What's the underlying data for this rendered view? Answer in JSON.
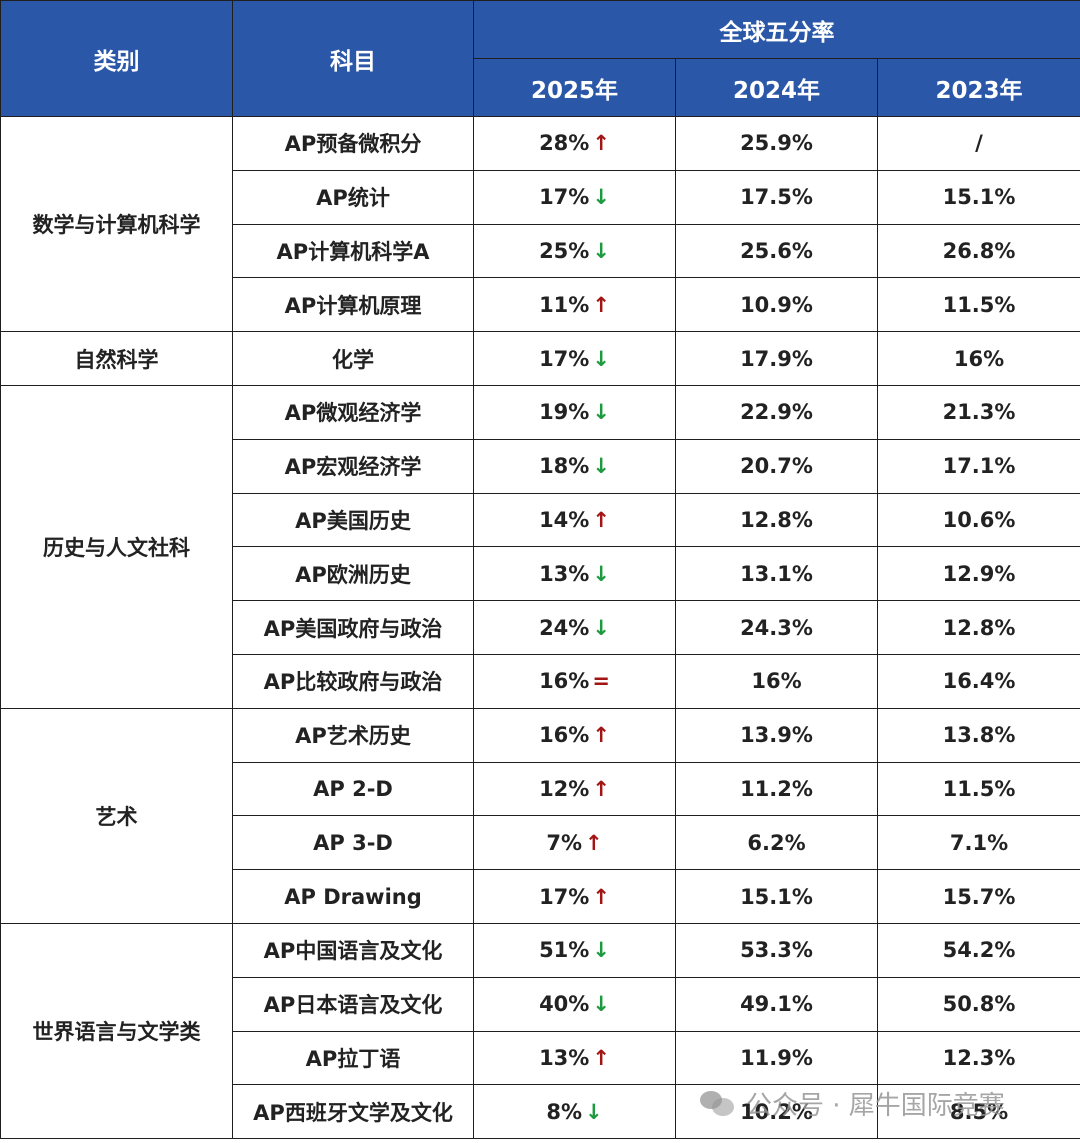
{
  "header": {
    "category": "类别",
    "subject": "科目",
    "group": "全球五分率",
    "years": [
      "2025年",
      "2024年",
      "2023年"
    ]
  },
  "categories": [
    {
      "name": "数学与计算机科学",
      "rows": 4
    },
    {
      "name": "自然科学",
      "rows": 1
    },
    {
      "name": "历史与人文社科",
      "rows": 6
    },
    {
      "name": "艺术",
      "rows": 4
    },
    {
      "name": "世界语言与文学类",
      "rows": 4
    }
  ],
  "rows": [
    {
      "subject": "AP预备微积分",
      "y2025": "28%",
      "trend": "up",
      "y2024": "25.9%",
      "y2023": "/"
    },
    {
      "subject": "AP统计",
      "y2025": "17%",
      "trend": "down",
      "y2024": "17.5%",
      "y2023": "15.1%"
    },
    {
      "subject": "AP计算机科学A",
      "y2025": "25%",
      "trend": "down",
      "y2024": "25.6%",
      "y2023": "26.8%"
    },
    {
      "subject": "AP计算机原理",
      "y2025": "11%",
      "trend": "up",
      "y2024": "10.9%",
      "y2023": "11.5%"
    },
    {
      "subject": "化学",
      "y2025": "17%",
      "trend": "down",
      "y2024": "17.9%",
      "y2023": "16%"
    },
    {
      "subject": "AP微观经济学",
      "y2025": "19%",
      "trend": "down",
      "y2024": "22.9%",
      "y2023": "21.3%"
    },
    {
      "subject": "AP宏观经济学",
      "y2025": "18%",
      "trend": "down",
      "y2024": "20.7%",
      "y2023": "17.1%"
    },
    {
      "subject": "AP美国历史",
      "y2025": "14%",
      "trend": "up",
      "y2024": "12.8%",
      "y2023": "10.6%"
    },
    {
      "subject": "AP欧洲历史",
      "y2025": "13%",
      "trend": "down",
      "y2024": "13.1%",
      "y2023": "12.9%"
    },
    {
      "subject": "AP美国政府与政治",
      "y2025": "24%",
      "trend": "down",
      "y2024": "24.3%",
      "y2023": "12.8%"
    },
    {
      "subject": "AP比较政府与政治",
      "y2025": "16%",
      "trend": "eq",
      "y2024": "16%",
      "y2023": "16.4%"
    },
    {
      "subject": "AP艺术历史",
      "y2025": "16%",
      "trend": "up",
      "y2024": "13.9%",
      "y2023": "13.8%"
    },
    {
      "subject": "AP 2-D",
      "y2025": "12%",
      "trend": "up",
      "y2024": "11.2%",
      "y2023": "11.5%"
    },
    {
      "subject": "AP 3-D",
      "y2025": "7%",
      "trend": "up",
      "y2024": "6.2%",
      "y2023": "7.1%"
    },
    {
      "subject": "AP Drawing",
      "y2025": "17%",
      "trend": "up",
      "y2024": "15.1%",
      "y2023": "15.7%"
    },
    {
      "subject": "AP中国语言及文化",
      "y2025": "51%",
      "trend": "down",
      "y2024": "53.3%",
      "y2023": "54.2%"
    },
    {
      "subject": "AP日本语言及文化",
      "y2025": "40%",
      "trend": "down",
      "y2024": "49.1%",
      "y2023": "50.8%"
    },
    {
      "subject": "AP拉丁语",
      "y2025": "13%",
      "trend": "up",
      "y2024": "11.9%",
      "y2023": "12.3%"
    },
    {
      "subject": "AP西班牙文学及文化",
      "y2025": "8%",
      "trend": "down",
      "y2024": "10.2%",
      "y2023": "8.5%"
    }
  ],
  "trend_symbols": {
    "up": "↑",
    "down": "↓",
    "eq": "="
  },
  "colors": {
    "header_bg": "#2b57a8",
    "up": "#a31515",
    "down": "#1e9a3e"
  },
  "watermark": {
    "text": "公众号 · 犀牛国际竞赛",
    "icon": "wechat-icon"
  }
}
